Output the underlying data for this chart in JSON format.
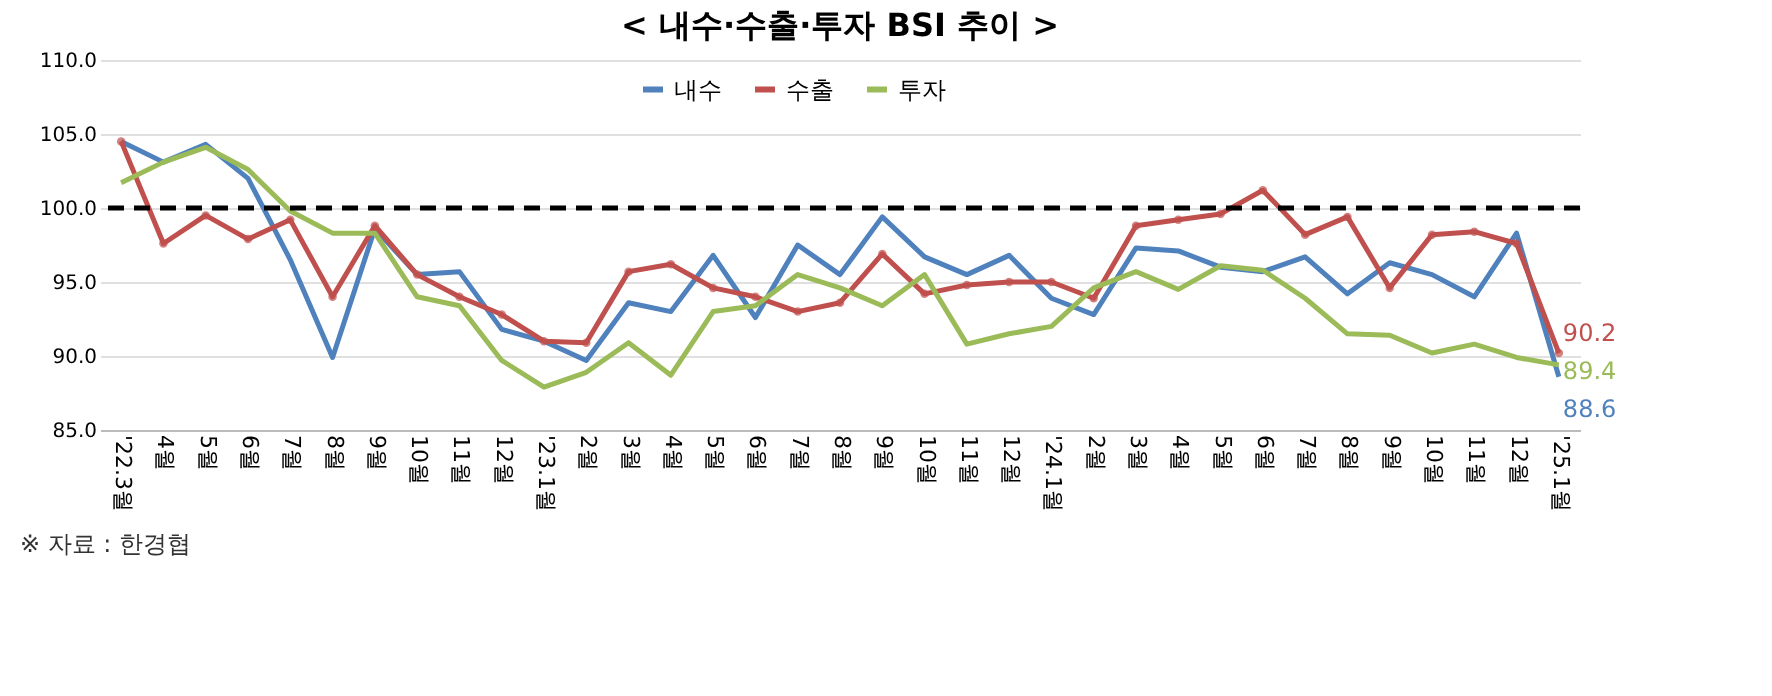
{
  "chart_data": {
    "type": "line",
    "title": "< 내수·수출·투자 BSI 추이 >",
    "categories": [
      "'22.3월",
      "4월",
      "5월",
      "6월",
      "7월",
      "8월",
      "9월",
      "10월",
      "11월",
      "12월",
      "'23.1월",
      "2월",
      "3월",
      "4월",
      "5월",
      "6월",
      "7월",
      "8월",
      "9월",
      "10월",
      "11월",
      "12월",
      "'24.1월",
      "2월",
      "3월",
      "4월",
      "5월",
      "6월",
      "7월",
      "8월",
      "9월",
      "10월",
      "11월",
      "12월",
      "'25.1월"
    ],
    "series": [
      {
        "name": "내수",
        "color": "#4f81bd",
        "marker": "none",
        "values": [
          104.5,
          103.1,
          104.3,
          102.0,
          96.5,
          89.9,
          98.6,
          95.5,
          95.7,
          91.8,
          91.0,
          89.7,
          93.6,
          93.0,
          96.8,
          92.6,
          97.5,
          95.5,
          99.4,
          96.7,
          95.5,
          96.8,
          93.9,
          92.8,
          97.3,
          97.1,
          96.0,
          95.7,
          96.7,
          94.2,
          96.3,
          95.5,
          94.0,
          98.3,
          88.6
        ],
        "value_labels": [
          null,
          null,
          null,
          null,
          null,
          null,
          null,
          null,
          null,
          null,
          null,
          null,
          null,
          null,
          null,
          null,
          null,
          null,
          null,
          null,
          null,
          null,
          null,
          null,
          null,
          null,
          null,
          null,
          null,
          null,
          null,
          null,
          null,
          null,
          "88.6"
        ]
      },
      {
        "name": "수출",
        "color": "#c0504d",
        "marker": "circle",
        "values": [
          104.5,
          97.6,
          99.5,
          97.9,
          99.2,
          94.0,
          98.8,
          95.5,
          94.0,
          92.8,
          91.0,
          90.9,
          95.7,
          96.2,
          94.6,
          94.0,
          93.0,
          93.6,
          96.9,
          94.2,
          94.8,
          95.0,
          95.0,
          93.9,
          98.8,
          99.2,
          99.6,
          101.2,
          98.2,
          99.4,
          94.6,
          98.2,
          98.4,
          97.6,
          90.2
        ],
        "value_labels": [
          null,
          null,
          null,
          null,
          null,
          null,
          null,
          null,
          null,
          null,
          null,
          null,
          null,
          null,
          null,
          null,
          null,
          null,
          null,
          null,
          null,
          null,
          null,
          null,
          null,
          null,
          null,
          null,
          null,
          null,
          null,
          null,
          null,
          null,
          "90.2"
        ]
      },
      {
        "name": "투자",
        "color": "#9bbb59",
        "marker": "none",
        "values": [
          101.7,
          103.1,
          104.1,
          102.6,
          99.8,
          98.3,
          98.3,
          94.0,
          93.4,
          89.7,
          87.9,
          88.9,
          90.9,
          88.7,
          93.0,
          93.4,
          95.5,
          94.6,
          93.4,
          95.5,
          90.8,
          91.5,
          92.0,
          94.6,
          95.7,
          94.5,
          96.1,
          95.8,
          93.9,
          91.5,
          91.4,
          90.2,
          90.8,
          89.9,
          89.4
        ],
        "value_labels": [
          null,
          null,
          null,
          null,
          null,
          null,
          null,
          null,
          null,
          null,
          null,
          null,
          null,
          null,
          null,
          null,
          null,
          null,
          null,
          null,
          null,
          null,
          null,
          null,
          null,
          null,
          null,
          null,
          null,
          null,
          null,
          null,
          null,
          null,
          "89.4"
        ]
      }
    ],
    "ylim": [
      85,
      110
    ],
    "yticks": [
      {
        "value": 85,
        "label": "85.0"
      },
      {
        "value": 90,
        "label": "90.0"
      },
      {
        "value": 95,
        "label": "95.0"
      },
      {
        "value": 100,
        "label": "100.0"
      },
      {
        "value": 105,
        "label": "105.0"
      },
      {
        "value": 110,
        "label": "110.0"
      }
    ],
    "grid": "y",
    "legend": "top",
    "line_style": "solid",
    "ref_lines": [
      {
        "axis": "y",
        "value": 100,
        "color": "#000000",
        "line_style": "dashed"
      }
    ],
    "annotations": [
      "※ 자료 : 한경협"
    ]
  }
}
